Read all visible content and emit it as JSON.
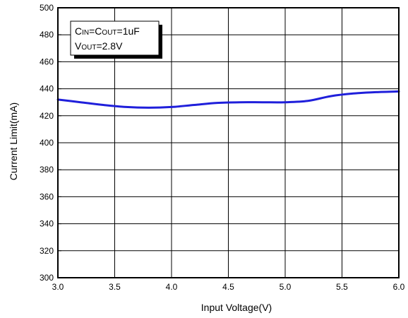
{
  "chart_data": {
    "type": "line",
    "title": "",
    "xlabel": "Input Voltage(V)",
    "ylabel": "Current Limit(mA)",
    "xlim": [
      3.0,
      6.0
    ],
    "ylim": [
      300,
      500
    ],
    "xticks": [
      "3.0",
      "3.5",
      "4.0",
      "4.5",
      "5.0",
      "5.5",
      "6.0"
    ],
    "yticks": [
      "300",
      "320",
      "340",
      "360",
      "380",
      "400",
      "420",
      "440",
      "460",
      "480",
      "500"
    ],
    "grid": true,
    "legend": {
      "line1_parts": [
        {
          "text": "C",
          "small": false
        },
        {
          "text": "IN",
          "small": true
        },
        {
          "text": "=C",
          "small": false
        },
        {
          "text": "OUT",
          "small": true
        },
        {
          "text": "=1uF",
          "small": false
        }
      ],
      "line2_parts": [
        {
          "text": "V",
          "small": false
        },
        {
          "text": "OUT",
          "small": true
        },
        {
          "text": "=2.8V",
          "small": false
        }
      ],
      "placement": "top-left"
    },
    "series": [
      {
        "color": "#1f1fdb",
        "x": [
          3.0,
          3.2,
          3.4,
          3.6,
          3.8,
          4.0,
          4.2,
          4.4,
          4.6,
          4.8,
          5.0,
          5.2,
          5.4,
          5.6,
          5.8,
          6.0
        ],
        "y": [
          432,
          430,
          428,
          426.5,
          426,
          426.5,
          428,
          429.5,
          430,
          430,
          430,
          431,
          434.5,
          436.5,
          437.5,
          438
        ]
      }
    ]
  }
}
